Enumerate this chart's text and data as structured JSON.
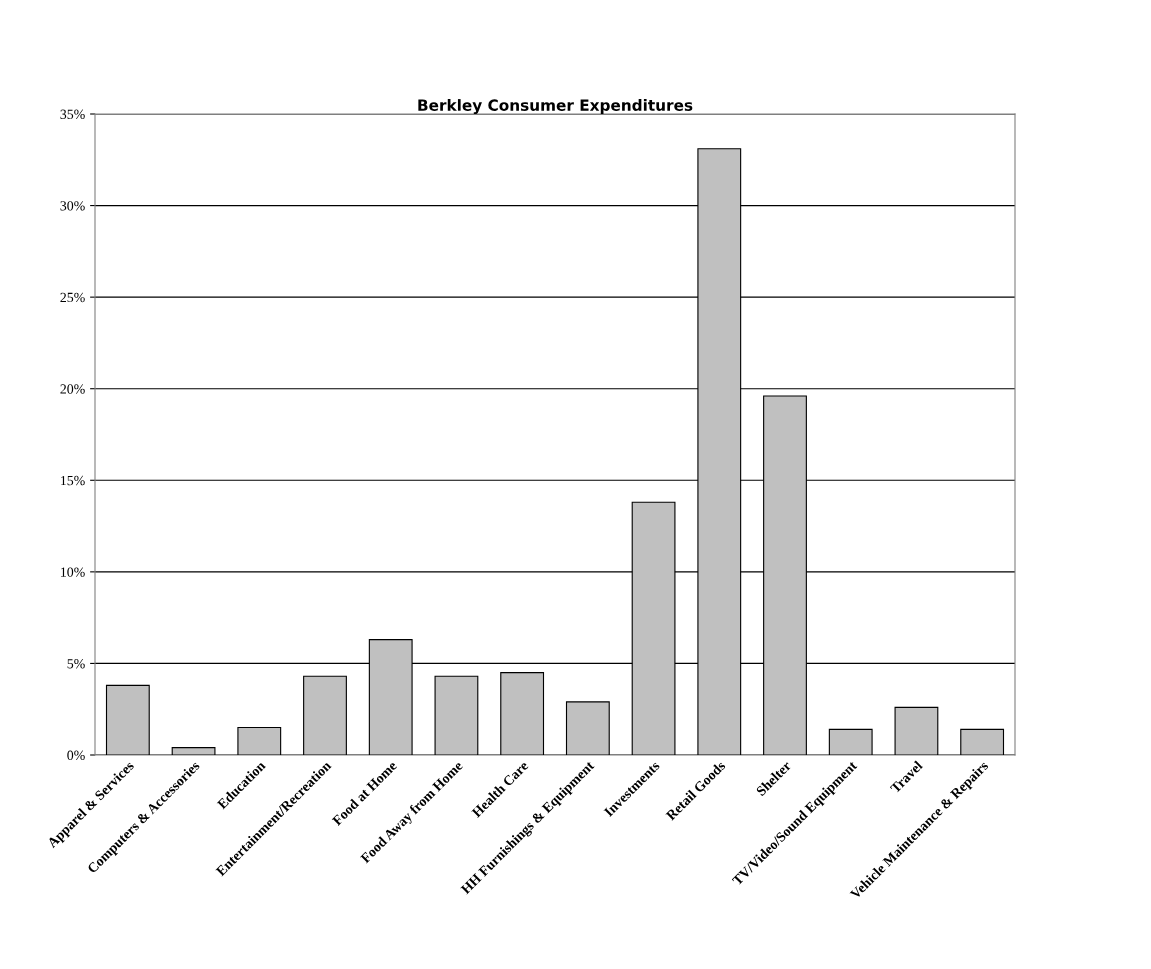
{
  "chart_data": {
    "type": "bar",
    "title": "Berkley Consumer Expenditures",
    "categories": [
      "Apparel & Services",
      "Computers & Accessories",
      "Education",
      "Entertainment/Recreation",
      "Food at Home",
      "Food Away from Home",
      "Health Care",
      "HH Furnishings & Equipment",
      "Investments",
      "Retail Goods",
      "Shelter",
      "TV/Video/Sound Equipment",
      "Travel",
      "Vehicle Maintenance & Repairs"
    ],
    "values": [
      3.8,
      0.4,
      1.5,
      4.3,
      6.3,
      4.3,
      4.5,
      2.9,
      13.8,
      33.1,
      19.6,
      1.4,
      2.6,
      1.4
    ],
    "color": "#c0c0c0",
    "ylim": [
      0,
      35
    ],
    "yticks": [
      {
        "value": 0,
        "label": "0%"
      },
      {
        "value": 5,
        "label": "5%"
      },
      {
        "value": 10,
        "label": "10%"
      },
      {
        "value": 15,
        "label": "15%"
      },
      {
        "value": 20,
        "label": "20%"
      },
      {
        "value": 25,
        "label": "25%"
      },
      {
        "value": 30,
        "label": "30%"
      },
      {
        "value": 35,
        "label": "35%"
      }
    ],
    "grid": "y"
  }
}
